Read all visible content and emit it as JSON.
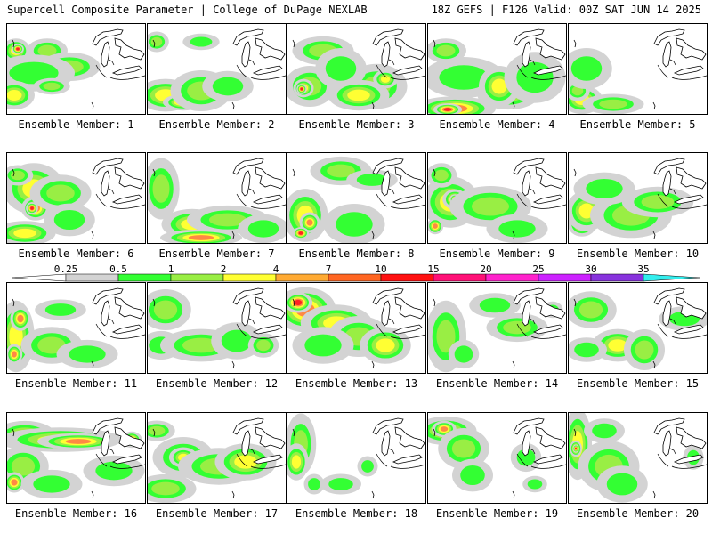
{
  "header": {
    "title": "Supercell Composite Parameter | College of DuPage NEXLAB",
    "run_info": "18Z GEFS | F126 Valid: 00Z SAT JUN 14 2025"
  },
  "colorbar": {
    "ticks": [
      "0.25",
      "0.5",
      "1",
      "2",
      "4",
      "7",
      "10",
      "15",
      "20",
      "25",
      "30",
      "35"
    ],
    "colors": [
      "#d3d3d3",
      "#33ff33",
      "#99ee44",
      "#ffff33",
      "#ffaa33",
      "#ff6622",
      "#ff1111",
      "#ff1177",
      "#ff22cc",
      "#cc22ff",
      "#8833dd",
      "#aa88ff",
      "#33eeee"
    ]
  },
  "panels": [
    {
      "label": "Ensemble Member: 1"
    },
    {
      "label": "Ensemble Member: 2"
    },
    {
      "label": "Ensemble Member: 3"
    },
    {
      "label": "Ensemble Member: 4"
    },
    {
      "label": "Ensemble Member: 5"
    },
    {
      "label": "Ensemble Member: 6"
    },
    {
      "label": "Ensemble Member: 7"
    },
    {
      "label": "Ensemble Member: 8"
    },
    {
      "label": "Ensemble Member: 9"
    },
    {
      "label": "Ensemble Member: 10"
    },
    {
      "label": "Ensemble Member: 11"
    },
    {
      "label": "Ensemble Member: 12"
    },
    {
      "label": "Ensemble Member: 13"
    },
    {
      "label": "Ensemble Member: 14"
    },
    {
      "label": "Ensemble Member: 15"
    },
    {
      "label": "Ensemble Member: 16"
    },
    {
      "label": "Ensemble Member: 17"
    },
    {
      "label": "Ensemble Member: 18"
    },
    {
      "label": "Ensemble Member: 19"
    },
    {
      "label": "Ensemble Member: 20"
    }
  ]
}
